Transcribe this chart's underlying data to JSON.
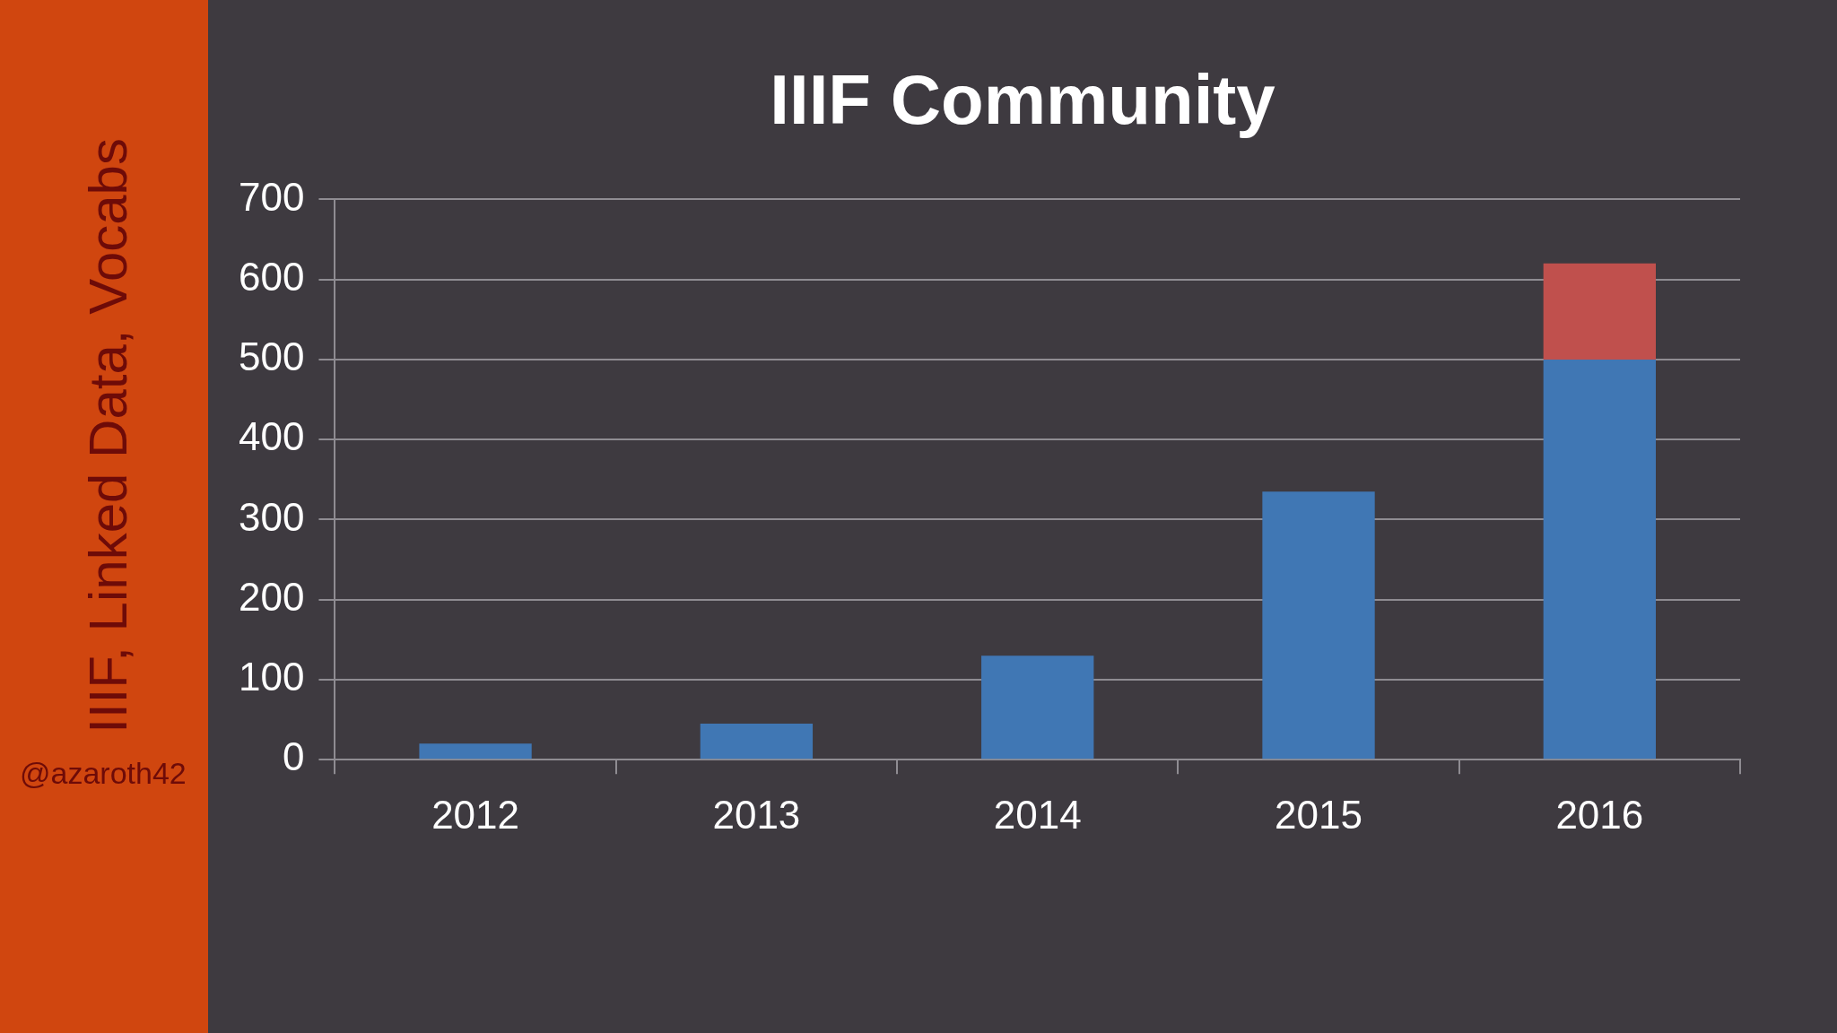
{
  "chart_data": {
    "type": "bar",
    "title": "IIIF Community",
    "annotations": [
      "IIIF, Linked Data, Vocabs",
      "@azaroth42"
    ],
    "categories": [
      "2012",
      "2013",
      "2014",
      "2015",
      "2016"
    ],
    "series": [
      {
        "color": "#4077b4",
        "values": [
          20,
          45,
          130,
          335,
          500
        ]
      },
      {
        "color": "#c0504d",
        "values": [
          null,
          null,
          null,
          null,
          120
        ]
      }
    ],
    "stacked": true,
    "ylim": [
      0,
      700
    ],
    "yticks": [
      0,
      100,
      200,
      300,
      400,
      500,
      600,
      700
    ],
    "grid": "y"
  }
}
